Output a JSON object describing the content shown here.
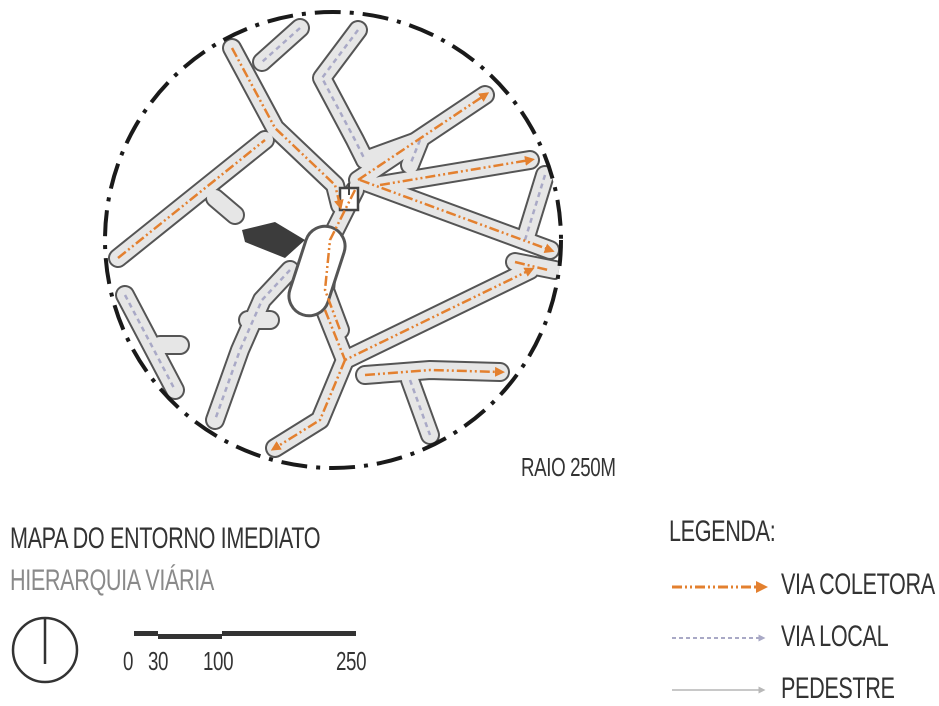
{
  "map": {
    "radius_label": "RAIO 250M",
    "title": "MAPA DO ENTORNO IMEDIATO",
    "subtitle": "HIERARQUIA VIÁRIA",
    "north_arrow_icon": "north-arrow-icon",
    "scale_bar": {
      "ticks": [
        "0",
        "30",
        "100",
        "250"
      ]
    },
    "colors": {
      "via_coletora": "#e3802f",
      "via_local": "#a9a9c6",
      "pedestre": "#c8c8c8",
      "street_fill": "#e6e6e6",
      "street_edge": "#555555",
      "boundary": "#1a1a1a",
      "site": "#3c3c3c"
    }
  },
  "legend": {
    "title": "LEGENDA:",
    "items": [
      {
        "label": "VIA COLETORA",
        "style": "orange-dash-dot"
      },
      {
        "label": "VIA LOCAL",
        "style": "gray-dashed"
      },
      {
        "label": "PEDESTRE",
        "style": "gray-solid"
      }
    ]
  }
}
